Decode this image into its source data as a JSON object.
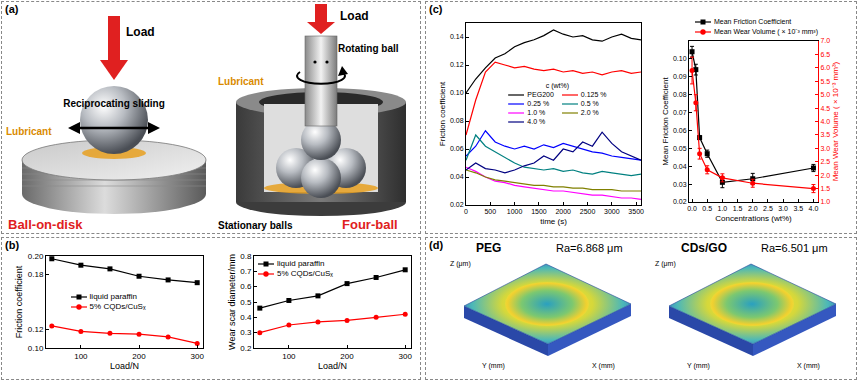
{
  "panels": {
    "a": {
      "label": "(a)",
      "ball_on_disk": {
        "title": "Ball-on-disk",
        "load": "Load",
        "motion": "Reciprocating sliding",
        "lubricant": "Lubricant"
      },
      "four_ball": {
        "title": "Four-ball",
        "load": "Load",
        "rotating": "Rotating ball",
        "lubricant": "Lubricant",
        "stationary": "Stationary balls"
      }
    },
    "b": {
      "label": "(b)"
    },
    "c": {
      "label": "(c)"
    },
    "d": {
      "label": "(d)",
      "images": [
        {
          "title": "PEG",
          "roughness": "Ra=6.868 μm"
        },
        {
          "title": "CDs/GO",
          "roughness": "Ra=6.501 μm"
        }
      ],
      "axis_labels": {
        "x": "X (mm)",
        "y": "Y (mm)",
        "z": "Z (μm)"
      }
    }
  },
  "chart_data": [
    {
      "type": "line",
      "x_label": "Load/N",
      "y_label": "Friction coefficient",
      "x": [
        50,
        100,
        150,
        200,
        250,
        300
      ],
      "series": [
        {
          "name": "liquid paraffin",
          "color": "#000000",
          "marker": "square",
          "values": [
            0.197,
            0.19,
            0.186,
            0.178,
            0.174,
            0.171
          ]
        },
        {
          "name": "5% CQDs/CuSₓ",
          "color": "#ff0000",
          "marker": "circle",
          "values": [
            0.124,
            0.118,
            0.116,
            0.115,
            0.112,
            0.105
          ]
        }
      ],
      "xlim": [
        40,
        310
      ],
      "xticks": [
        100,
        200,
        300
      ],
      "ylim": [
        0.1,
        0.2
      ],
      "yticks": [
        {
          "value": 0.1,
          "label": "0.10"
        },
        0.12,
        0.18,
        {
          "value": 0.2,
          "label": "0.20"
        }
      ],
      "grid": false,
      "legend": "center"
    },
    {
      "type": "line",
      "x_label": "Load/N",
      "y_label": "Wear scar diameter/mm",
      "x": [
        50,
        100,
        150,
        200,
        250,
        300
      ],
      "series": [
        {
          "name": "liquid paraffin",
          "color": "#000000",
          "marker": "square",
          "values": [
            0.46,
            0.51,
            0.54,
            0.62,
            0.66,
            0.71
          ]
        },
        {
          "name": "5% CQDs/CuSₓ",
          "color": "#ff0000",
          "marker": "circle",
          "values": [
            0.3,
            0.35,
            0.37,
            0.38,
            0.4,
            0.42
          ]
        }
      ],
      "xlim": [
        40,
        310
      ],
      "xticks": [
        100,
        200,
        300
      ],
      "ylim": [
        0.2,
        0.8
      ],
      "yticks": [
        0.2,
        0.3,
        0.4,
        0.5,
        0.6,
        0.7,
        0.8
      ],
      "grid": false,
      "legend": "top left"
    },
    {
      "type": "line",
      "x_label": "time (s)",
      "y_label": "Friction coefficient",
      "legend_title": "c (wt%)",
      "x": [
        0,
        200,
        400,
        600,
        800,
        1000,
        1200,
        1400,
        1600,
        1800,
        2000,
        2200,
        2400,
        2600,
        2800,
        3000,
        3200,
        3400,
        3600
      ],
      "series": [
        {
          "name": "PEG200",
          "color": "#000000",
          "values": [
            0.1,
            0.11,
            0.118,
            0.125,
            0.128,
            0.133,
            0.136,
            0.138,
            0.141,
            0.145,
            0.142,
            0.14,
            0.141,
            0.138,
            0.137,
            0.14,
            0.142,
            0.139,
            0.138
          ]
        },
        {
          "name": "0.125 %",
          "color": "#ff0000",
          "values": [
            0.07,
            0.095,
            0.115,
            0.122,
            0.12,
            0.118,
            0.119,
            0.117,
            0.116,
            0.117,
            0.115,
            0.116,
            0.114,
            0.115,
            0.113,
            0.115,
            0.116,
            0.114,
            0.115
          ]
        },
        {
          "name": "0.25 %",
          "color": "#0000ff",
          "values": [
            0.055,
            0.062,
            0.073,
            0.065,
            0.062,
            0.06,
            0.062,
            0.06,
            0.063,
            0.061,
            0.064,
            0.062,
            0.06,
            0.058,
            0.057,
            0.055,
            0.054,
            0.053,
            0.052
          ]
        },
        {
          "name": "0.5 %",
          "color": "#008080",
          "values": [
            0.052,
            0.07,
            0.062,
            0.058,
            0.054,
            0.05,
            0.047,
            0.046,
            0.045,
            0.046,
            0.044,
            0.045,
            0.043,
            0.042,
            0.044,
            0.043,
            0.042,
            0.041,
            0.042
          ]
        },
        {
          "name": "1.0 %",
          "color": "#ff00ff",
          "values": [
            0.047,
            0.044,
            0.04,
            0.037,
            0.036,
            0.034,
            0.033,
            0.032,
            0.031,
            0.03,
            0.03,
            0.029,
            0.028,
            0.027,
            0.027,
            0.026,
            0.025,
            0.025,
            0.024
          ]
        },
        {
          "name": "2.0 %",
          "color": "#808000",
          "values": [
            0.045,
            0.043,
            0.04,
            0.038,
            0.037,
            0.036,
            0.035,
            0.034,
            0.034,
            0.033,
            0.033,
            0.032,
            0.032,
            0.031,
            0.031,
            0.031,
            0.03,
            0.03,
            0.03
          ]
        },
        {
          "name": "4.0 %",
          "color": "#000080",
          "values": [
            0.045,
            0.05,
            0.046,
            0.045,
            0.043,
            0.045,
            0.048,
            0.05,
            0.055,
            0.052,
            0.06,
            0.058,
            0.065,
            0.062,
            0.072,
            0.064,
            0.058,
            0.055,
            0.052
          ]
        }
      ],
      "xlim": [
        0,
        3600
      ],
      "xticks": [
        0,
        500,
        1000,
        1500,
        2000,
        2500,
        3000,
        3500
      ],
      "ylim": [
        0.02,
        0.15
      ],
      "yticks": [
        0.02,
        0.04,
        0.06,
        0.08,
        {
          "value": 0.1,
          "label": "0.10"
        },
        0.12,
        0.14
      ],
      "grid": false,
      "legend": "center"
    },
    {
      "type": "line",
      "x_label": "Concentrations (wt%)",
      "y_label": "Mean Friction Coefficient",
      "y2_label": "Mean Wear Volume ( × 10⁻³ mm³)",
      "x": [
        0,
        0.125,
        0.25,
        0.5,
        1.0,
        2.0,
        4.0
      ],
      "series": [
        {
          "name": "Mean Friction Coefficient",
          "color": "#000000",
          "marker": "square",
          "values": [
            0.104,
            0.094,
            0.056,
            0.047,
            0.031,
            0.033,
            0.039
          ],
          "errors": [
            0.003,
            0.003,
            0.001,
            0.002,
            0.003,
            0.003,
            0.002
          ]
        },
        {
          "name": "Mean Wear Volume ( × 10⁻³ mm³)",
          "color": "#ff0000",
          "marker": "circle",
          "axis": "y2",
          "values": [
            5.9,
            4.7,
            2.8,
            2.2,
            1.9,
            1.7,
            1.5
          ],
          "errors": [
            0.5,
            0.3,
            0.2,
            0.15,
            0.15,
            0.15,
            0.15
          ]
        }
      ],
      "xlim": [
        -0.1,
        4.15
      ],
      "xticks": [
        {
          "value": 0,
          "label": "0.0"
        },
        0.5,
        {
          "value": 1,
          "label": "1.0"
        },
        1.5,
        {
          "value": 2,
          "label": "2.0"
        },
        2.5,
        {
          "value": 3,
          "label": "3.0"
        },
        3.5,
        {
          "value": 4,
          "label": "4.0"
        }
      ],
      "ylim": [
        0.02,
        0.11
      ],
      "yticks": [
        0.02,
        0.03,
        0.04,
        0.05,
        0.06,
        0.07,
        0.08,
        0.09,
        {
          "value": 0.1,
          "label": "0.10"
        }
      ],
      "y2lim": [
        1.0,
        7.0
      ],
      "y2ticks": [
        {
          "value": 1,
          "label": "1.0"
        },
        1.5,
        {
          "value": 2,
          "label": "2.0"
        },
        2.5,
        {
          "value": 3,
          "label": "3.0"
        },
        3.5,
        {
          "value": 4,
          "label": "4.0"
        },
        4.5,
        {
          "value": 5,
          "label": "5.0"
        },
        5.5,
        {
          "value": 6,
          "label": "6.0"
        },
        6.5,
        {
          "value": 7,
          "label": "7.0"
        }
      ],
      "grid": false,
      "legend": "top"
    }
  ]
}
